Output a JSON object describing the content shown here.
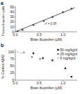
{
  "chart_data": [
    {
      "type": "scatter",
      "title": "a",
      "x_label": "Brain ibuprofen (µM)",
      "y_label": "Plasma ibuprofen (µM)",
      "series": [
        {
          "type": "scatter",
          "marker": "square",
          "color": "#444444",
          "x": [
            0.05,
            0.15,
            0.38,
            0.6,
            0.78,
            1.0,
            1.18
          ],
          "values": [
            1,
            4,
            14,
            22,
            30,
            40,
            47
          ]
        },
        {
          "type": "line",
          "color": "#444444",
          "x": [
            0.0,
            1.25
          ],
          "values": [
            0.0,
            49
          ]
        }
      ],
      "annotations": [
        {
          "text": "r² = 0.95",
          "x": 0.62,
          "y": 14
        }
      ],
      "xlim": [
        0,
        1.3
      ],
      "ylim": [
        0,
        52
      ],
      "xticks": [
        {
          "value": 0.0,
          "label": "0.0"
        },
        0.5,
        {
          "value": 1.0,
          "label": "1.0"
        }
      ],
      "yticks": [
        0,
        10,
        20,
        30,
        40,
        50
      ],
      "grid": false
    },
    {
      "type": "scatter",
      "title": "b",
      "x_label": "Brain ibuprofen (µM)",
      "y_label": "% Control Aβ42",
      "series": [
        {
          "name": "50 mg/kg/d",
          "marker": "square",
          "color": "#222222",
          "x": [
            0.38,
            0.58,
            0.78,
            1.05,
            1.18
          ],
          "values": [
            95,
            78,
            70,
            42,
            12
          ]
        },
        {
          "name": "25 mg/kg/d",
          "marker": "square",
          "color": "#888888",
          "x": [
            0.18,
            0.35,
            0.52
          ],
          "values": [
            98,
            82,
            75
          ]
        },
        {
          "name": "5 mg/kg/d",
          "marker": "square",
          "color": "#cccccc",
          "x": [
            0.05,
            0.12
          ],
          "values": [
            100,
            96
          ]
        }
      ],
      "xlim": [
        0,
        1.3
      ],
      "ylim": [
        0,
        110
      ],
      "xticks": [
        {
          "value": 0.0,
          "label": "0.0"
        },
        0.5,
        {
          "value": 1.0,
          "label": "1.0"
        }
      ],
      "yticks": [
        0,
        25,
        50,
        75,
        100
      ],
      "grid": false,
      "legend": "upper right"
    }
  ]
}
